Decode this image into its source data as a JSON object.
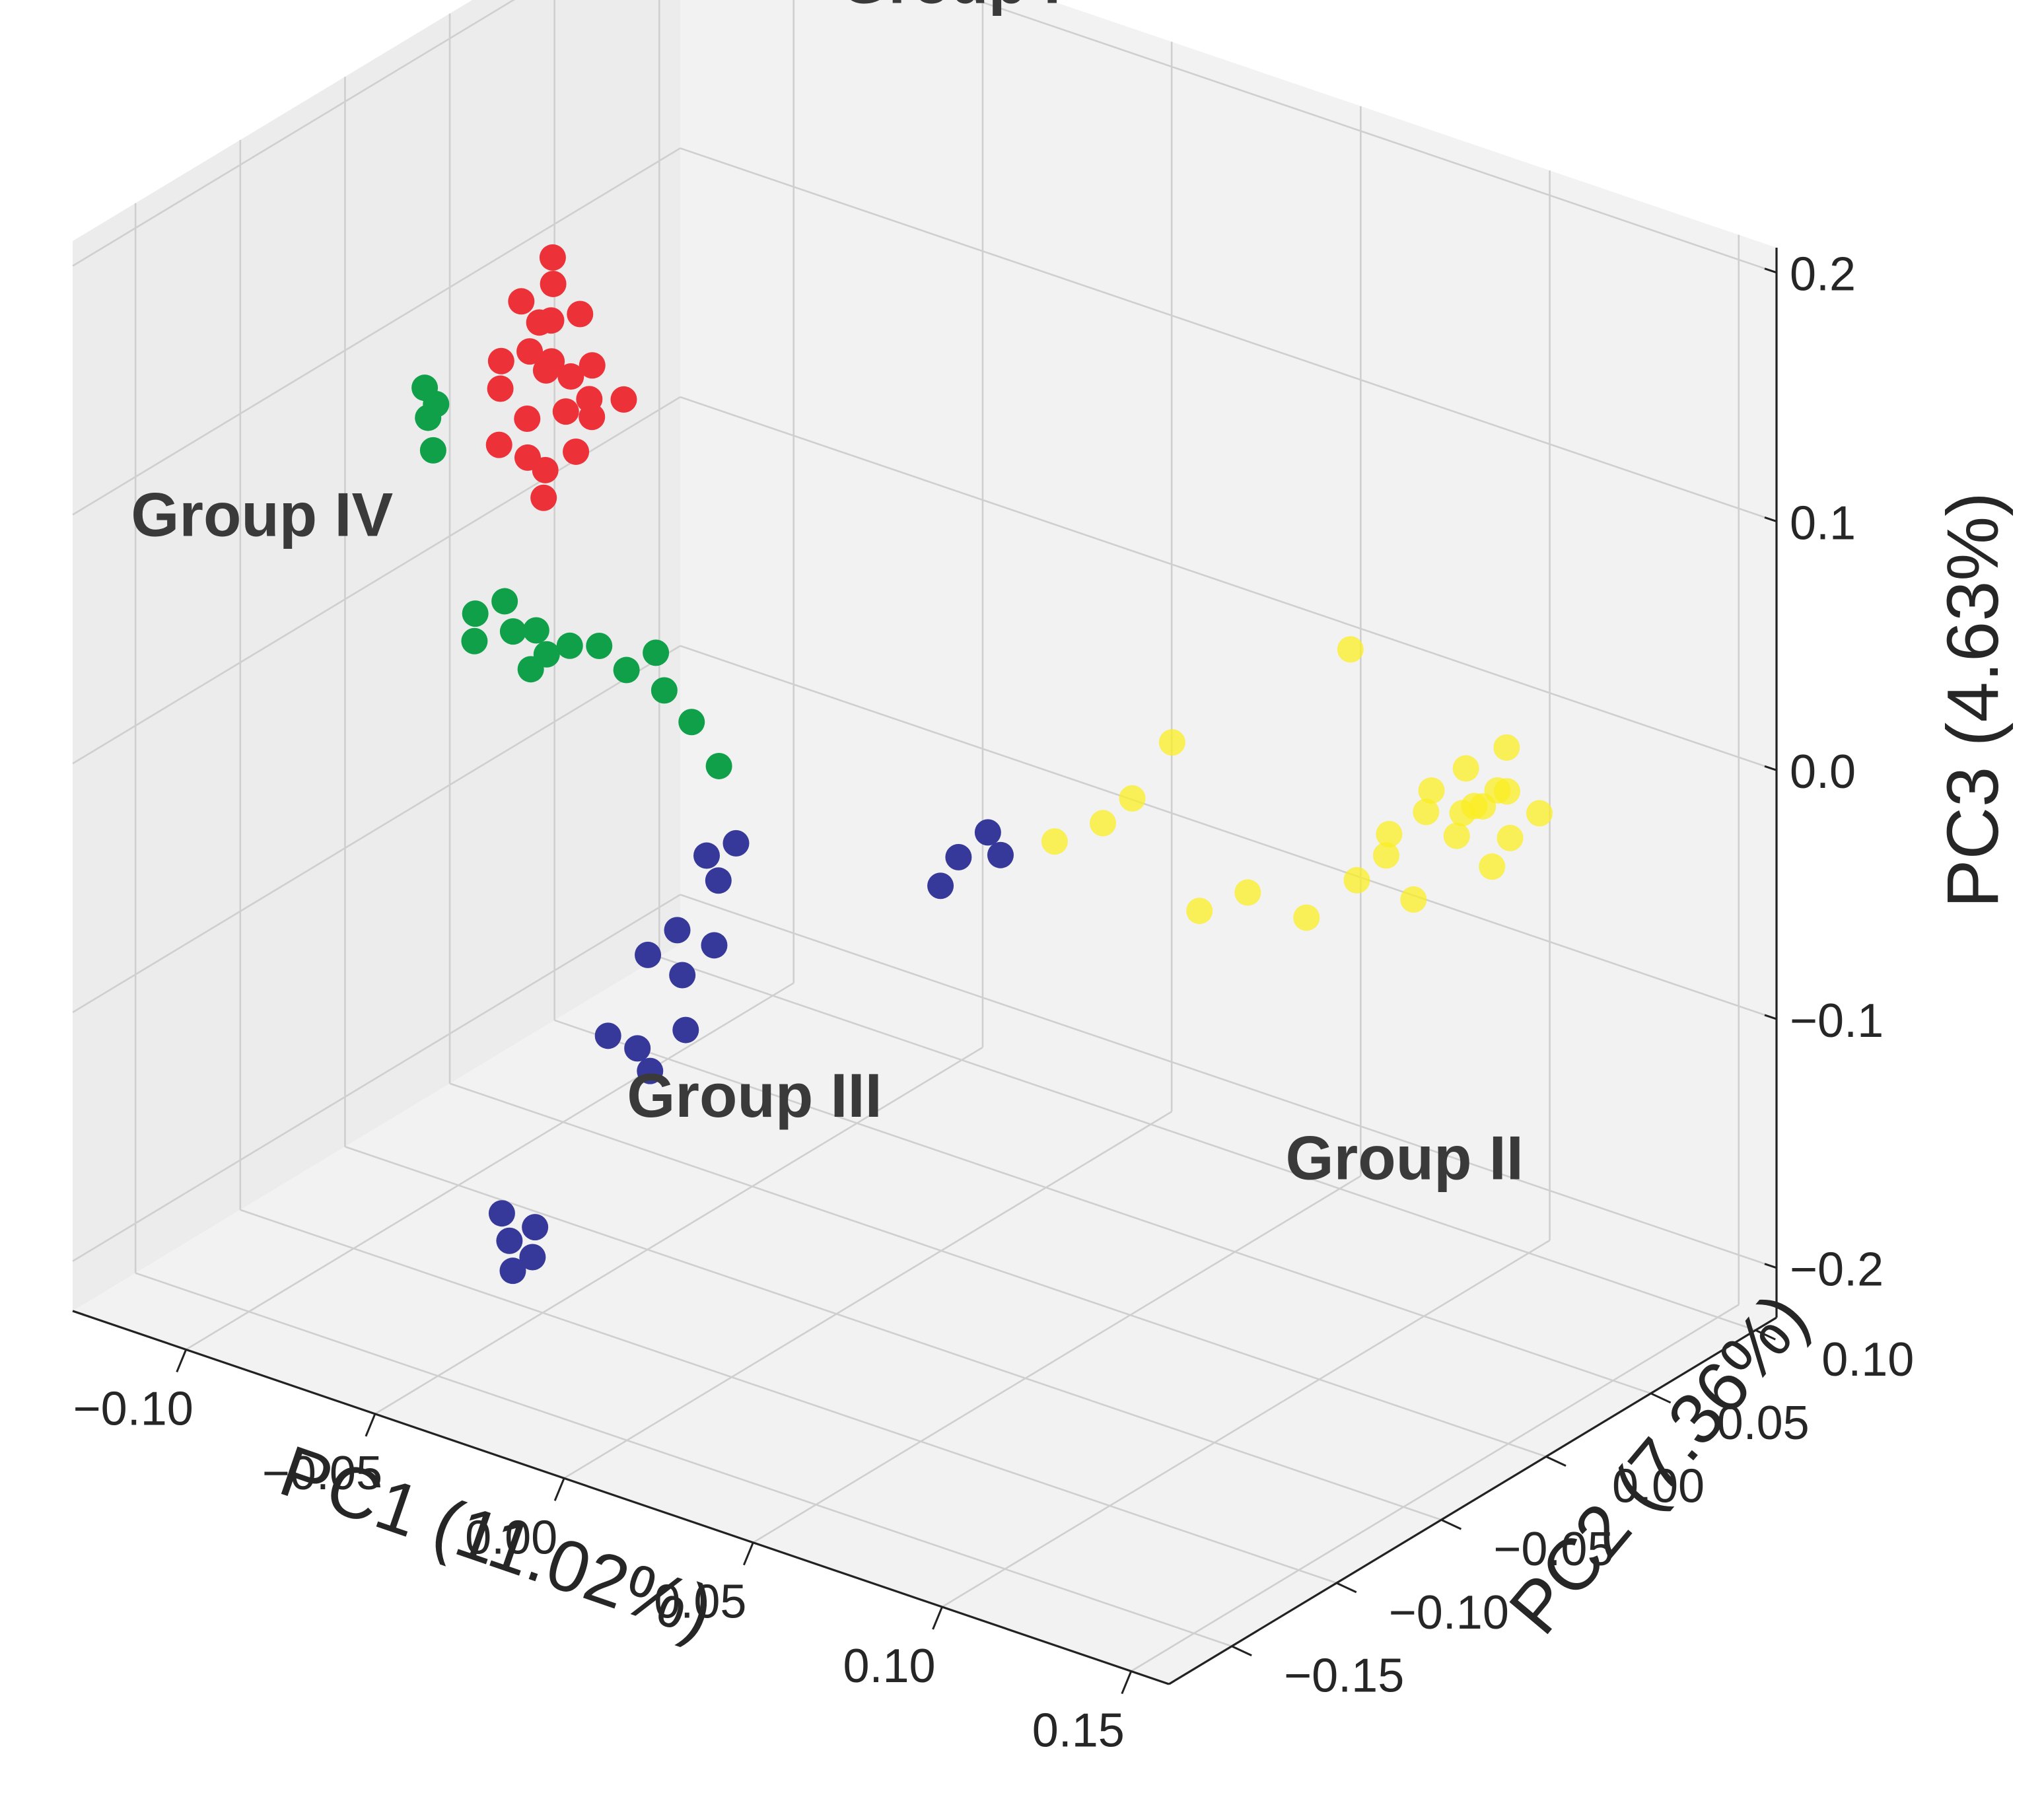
{
  "chart_data": {
    "type": "scatter3d",
    "title": "",
    "axes": {
      "x": {
        "label": "PC1 (11.02%)",
        "range": [
          -0.13,
          0.16
        ],
        "ticks": [
          -0.1,
          -0.05,
          0.0,
          0.05,
          0.1,
          0.15
        ],
        "tick_labels": [
          "−0.10",
          "−0.05",
          "0.00",
          "0.05",
          "0.10",
          "0.15"
        ]
      },
      "y": {
        "label": "PC2 (7.36%)",
        "range": [
          -0.18,
          0.11
        ],
        "ticks": [
          -0.15,
          -0.1,
          -0.05,
          0.0,
          0.05,
          0.1
        ],
        "tick_labels": [
          "−0.15",
          "−0.10",
          "−0.05",
          "0.00",
          "0.05",
          "0.10"
        ]
      },
      "z": {
        "label": "PC3 (4.63%)",
        "range": [
          -0.22,
          0.21
        ],
        "ticks": [
          -0.2,
          -0.1,
          0.0,
          0.1,
          0.2
        ],
        "tick_labels": [
          "−0.2",
          "−0.1",
          "0.0",
          "0.1",
          "0.2"
        ]
      }
    },
    "grid": true,
    "series": [
      {
        "name": "Group I",
        "color": "#ec3138",
        "points": [
          [
            -0.1,
            -0.02,
            0.12
          ],
          [
            -0.098,
            -0.015,
            0.11
          ],
          [
            -0.095,
            -0.025,
            0.105
          ],
          [
            -0.09,
            -0.01,
            0.115
          ],
          [
            -0.1,
            -0.03,
            0.09
          ],
          [
            -0.092,
            -0.02,
            0.1
          ],
          [
            -0.088,
            -0.018,
            0.095
          ],
          [
            -0.094,
            -0.028,
            0.08
          ],
          [
            -0.086,
            -0.024,
            0.085
          ],
          [
            -0.09,
            -0.035,
            0.07
          ],
          [
            -0.082,
            -0.02,
            0.09
          ],
          [
            -0.096,
            -0.012,
            0.125
          ],
          [
            -0.08,
            -0.03,
            0.075
          ],
          [
            -0.087,
            -0.032,
            0.065
          ],
          [
            -0.1,
            -0.005,
            0.13
          ],
          [
            -0.084,
            -0.015,
            0.1
          ],
          [
            -0.091,
            -0.022,
            0.118
          ],
          [
            -0.078,
            -0.026,
            0.088
          ],
          [
            -0.083,
            -0.04,
            0.06
          ],
          [
            -0.097,
            -0.036,
            0.072
          ],
          [
            -0.074,
            -0.018,
            0.093
          ],
          [
            -0.089,
            -0.028,
            0.102
          ],
          [
            -0.102,
            -0.026,
            0.098
          ]
        ]
      },
      {
        "name": "Group II",
        "color": "#fbed22",
        "points": [
          [
            0.1,
            0.07,
            -0.01
          ],
          [
            0.105,
            0.065,
            -0.02
          ],
          [
            0.11,
            0.06,
            -0.015
          ],
          [
            0.098,
            0.072,
            -0.03
          ],
          [
            0.095,
            0.06,
            -0.025
          ],
          [
            0.09,
            0.05,
            -0.04
          ],
          [
            0.115,
            0.058,
            -0.005
          ],
          [
            0.12,
            0.055,
            -0.02
          ],
          [
            0.108,
            0.075,
            0.0
          ],
          [
            0.085,
            0.045,
            -0.05
          ],
          [
            0.08,
            0.03,
            -0.06
          ],
          [
            0.07,
            0.02,
            -0.05
          ],
          [
            0.06,
            0.015,
            -0.06
          ],
          [
            0.05,
            0.02,
            0.0
          ],
          [
            0.045,
            0.01,
            -0.02
          ],
          [
            0.04,
            0.005,
            -0.03
          ],
          [
            0.03,
            0.0,
            -0.04
          ],
          [
            0.075,
            0.06,
            0.03
          ],
          [
            0.1,
            0.045,
            -0.05
          ],
          [
            0.112,
            0.068,
            -0.012
          ],
          [
            0.102,
            0.062,
            -0.032
          ],
          [
            0.092,
            0.068,
            -0.022
          ],
          [
            0.118,
            0.05,
            -0.03
          ],
          [
            0.125,
            0.06,
            -0.01
          ],
          [
            0.088,
            0.055,
            -0.035
          ]
        ]
      },
      {
        "name": "Group III",
        "color": "#37399a",
        "points": [
          [
            0.06,
            -0.1,
            0.02
          ],
          [
            0.065,
            -0.095,
            0.03
          ],
          [
            0.07,
            -0.098,
            0.025
          ],
          [
            0.058,
            -0.105,
            0.01
          ],
          [
            0.01,
            -0.13,
            0.01
          ],
          [
            0.015,
            -0.125,
            0.015
          ],
          [
            0.012,
            -0.128,
            0.0
          ],
          [
            0.0,
            -0.14,
            -0.03
          ],
          [
            0.005,
            -0.135,
            -0.02
          ],
          [
            0.008,
            -0.138,
            -0.035
          ],
          [
            0.012,
            -0.13,
            -0.025
          ],
          [
            -0.005,
            -0.15,
            -0.06
          ],
          [
            0.0,
            -0.145,
            -0.065
          ],
          [
            0.005,
            -0.148,
            -0.07
          ],
          [
            0.01,
            -0.14,
            -0.055
          ],
          [
            -0.02,
            -0.17,
            -0.14
          ],
          [
            -0.015,
            -0.168,
            -0.145
          ],
          [
            -0.018,
            -0.172,
            -0.15
          ],
          [
            -0.022,
            -0.17,
            -0.13
          ],
          [
            -0.016,
            -0.165,
            -0.135
          ]
        ]
      },
      {
        "name": "Group IV",
        "color": "#10a04a",
        "points": [
          [
            -0.12,
            -0.03,
            0.08
          ],
          [
            -0.118,
            -0.032,
            0.07
          ],
          [
            -0.115,
            -0.035,
            0.06
          ],
          [
            -0.117,
            -0.03,
            0.075
          ],
          [
            -0.09,
            -0.06,
            0.02
          ],
          [
            -0.085,
            -0.055,
            0.025
          ],
          [
            -0.08,
            -0.06,
            0.018
          ],
          [
            -0.075,
            -0.058,
            0.02
          ],
          [
            -0.07,
            -0.062,
            0.015
          ],
          [
            -0.065,
            -0.06,
            0.02
          ],
          [
            -0.06,
            -0.055,
            0.02
          ],
          [
            -0.05,
            -0.06,
            0.018
          ],
          [
            -0.045,
            -0.055,
            0.025
          ],
          [
            -0.04,
            -0.06,
            0.015
          ],
          [
            -0.03,
            -0.065,
            0.01
          ],
          [
            -0.02,
            -0.07,
            0.0
          ],
          [
            -0.088,
            -0.064,
            0.012
          ],
          [
            -0.072,
            -0.066,
            0.01
          ]
        ]
      }
    ],
    "annotations": [
      {
        "text": "Group I",
        "anchor": [
          -0.06,
          0.06,
          0.22
        ]
      },
      {
        "text": "Group II",
        "anchor": [
          0.08,
          0.02,
          -0.16
        ]
      },
      {
        "text": "Group III",
        "anchor": [
          0.0,
          -0.15,
          -0.09
        ]
      },
      {
        "text": "Group IV",
        "anchor": [
          -0.17,
          -0.08,
          0.02
        ]
      }
    ]
  },
  "colors": {
    "pane": "#f2f2f2",
    "pane_side": "#ececec",
    "grid": "#cfcfcf",
    "text": "#262626"
  }
}
